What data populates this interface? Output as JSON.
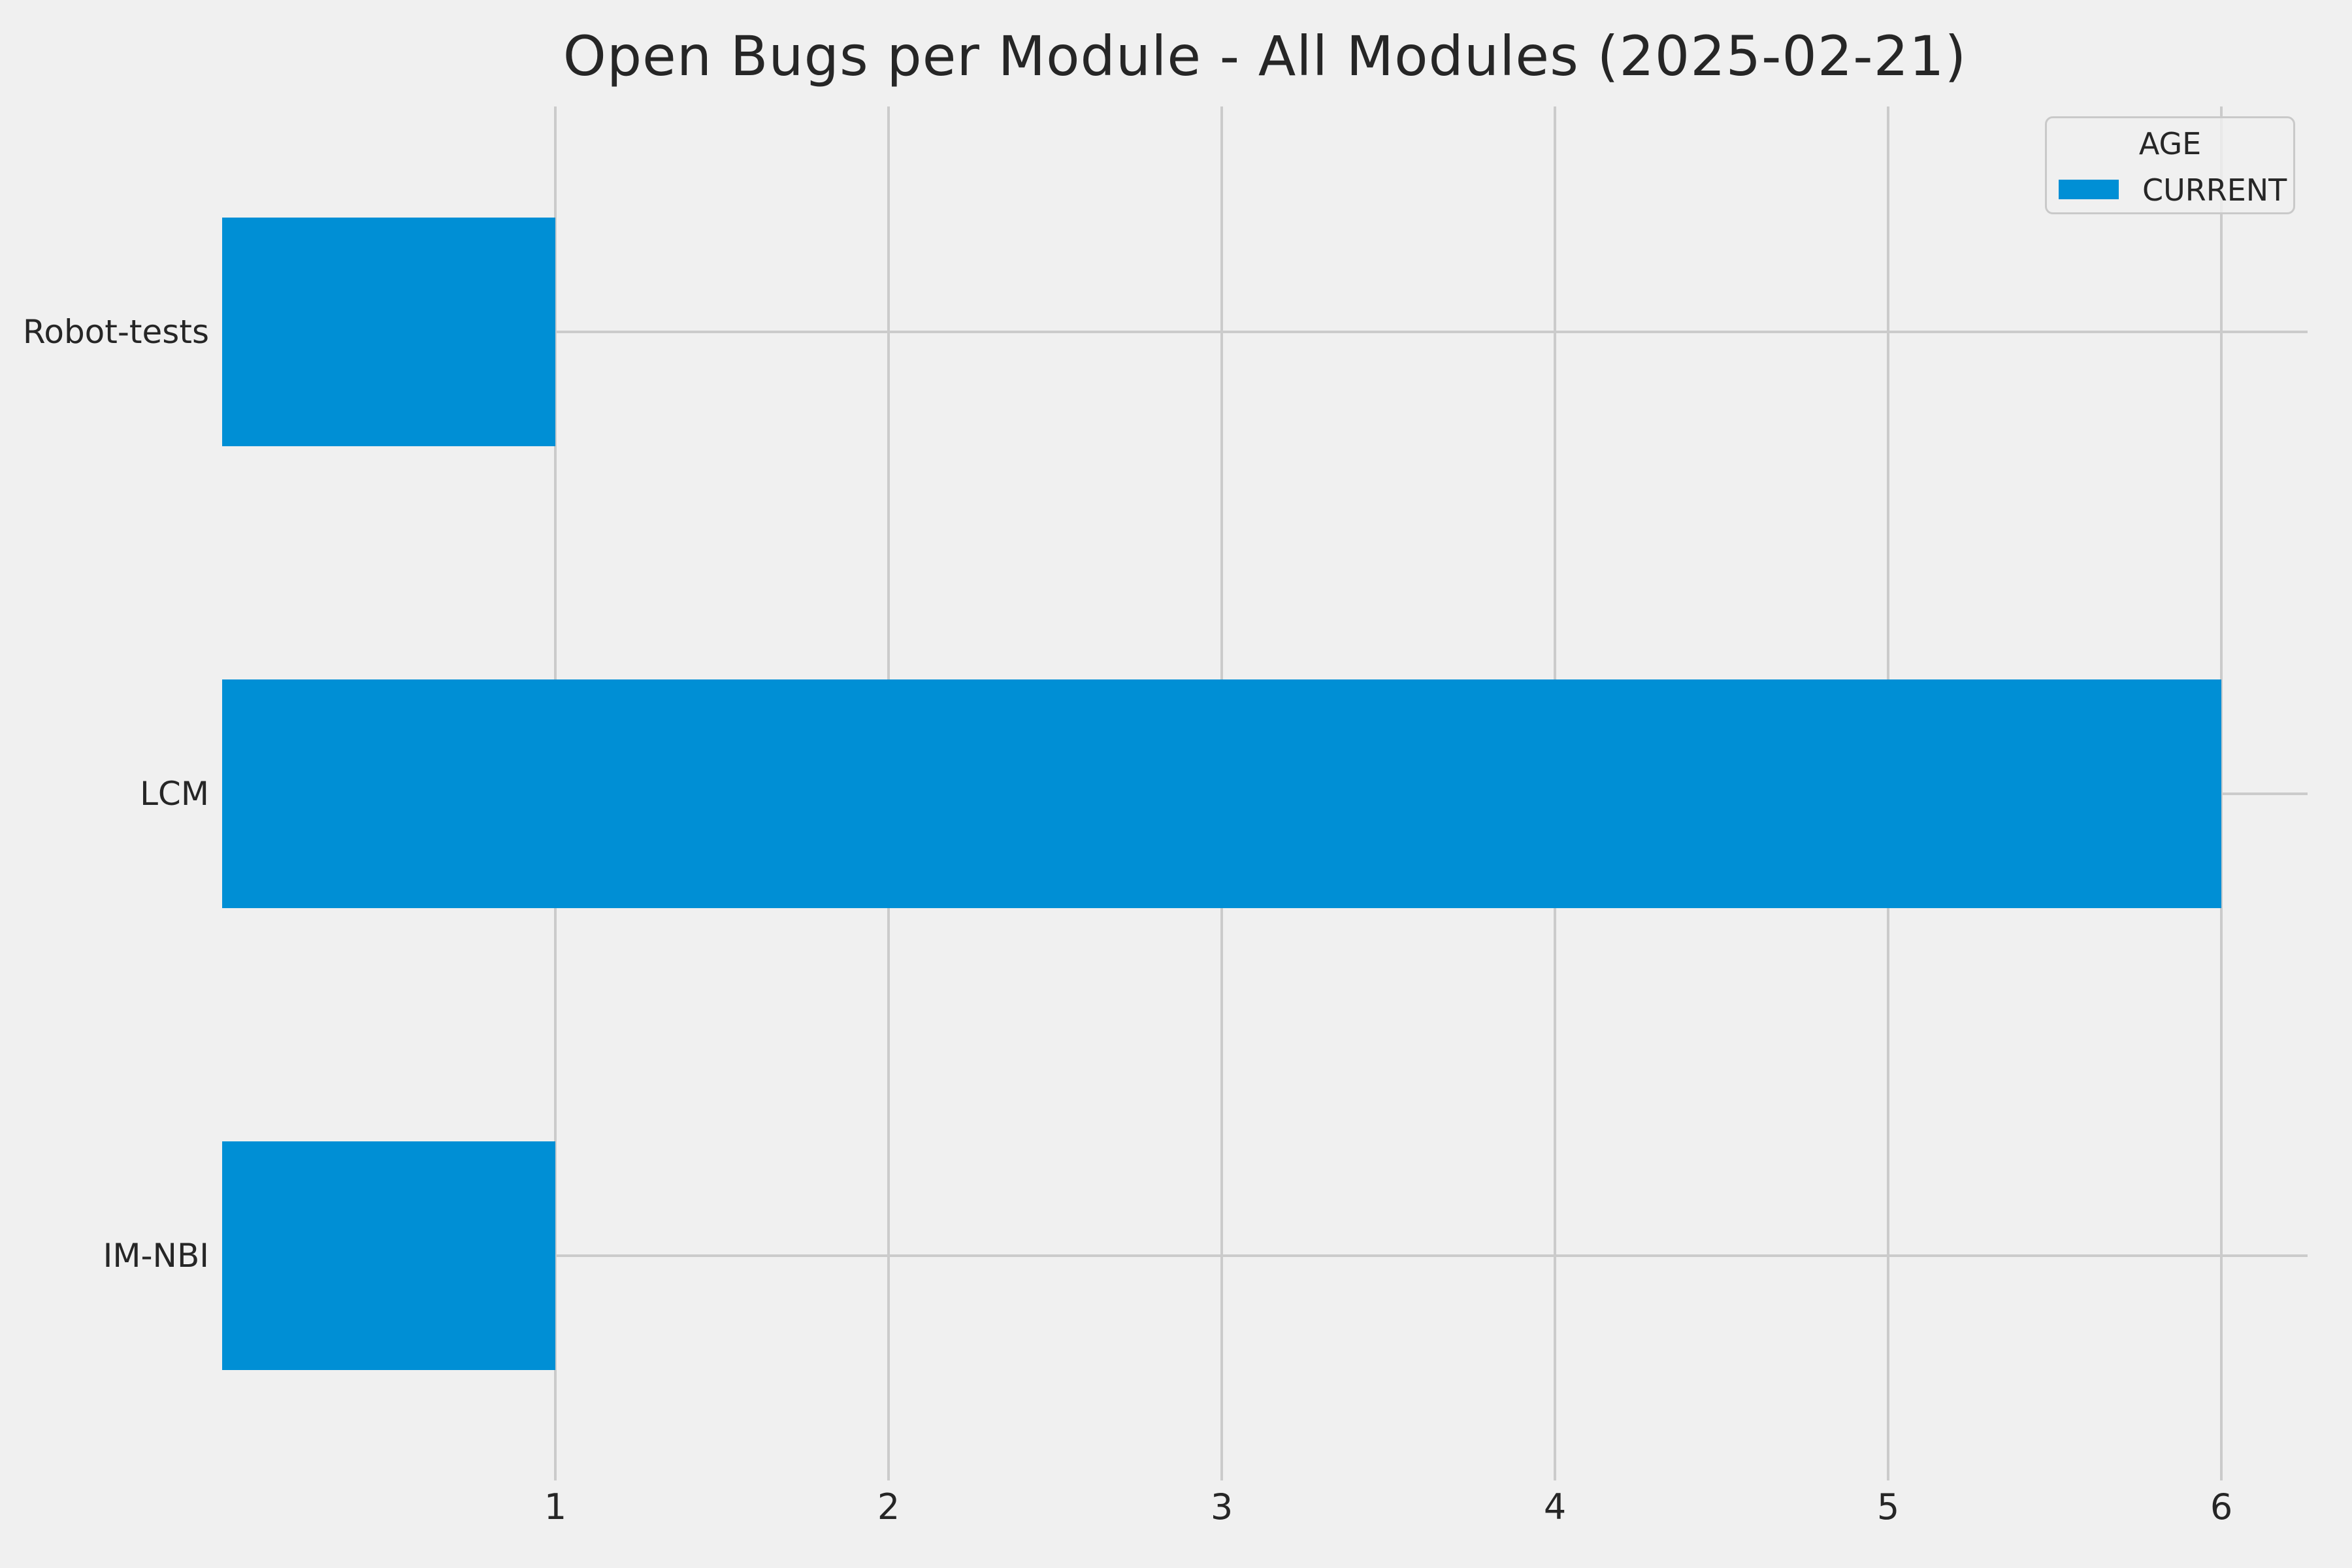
{
  "chart_data": {
    "type": "bar",
    "orientation": "horizontal",
    "title": "Open Bugs per Module - All Modules (2025-02-21)",
    "categories": [
      "Robot-tests",
      "LCM",
      "IM-NBI"
    ],
    "values": [
      1,
      6,
      1
    ],
    "series": [
      {
        "name": "CURRENT",
        "values": [
          1,
          6,
          1
        ]
      }
    ],
    "legend": {
      "title": "AGE",
      "entries": [
        "CURRENT"
      ],
      "position": "upper-right"
    },
    "xlabel": "",
    "ylabel": "",
    "x_ticks": [
      1,
      2,
      3,
      4,
      5,
      6
    ],
    "xlim": [
      0,
      6.26
    ],
    "grid": true,
    "colors": {
      "bar": "#008fd5",
      "background": "#f0f0f0",
      "grid": "#cbcbcb",
      "text": "#262626",
      "legend_border": "#c9c9c9"
    }
  }
}
